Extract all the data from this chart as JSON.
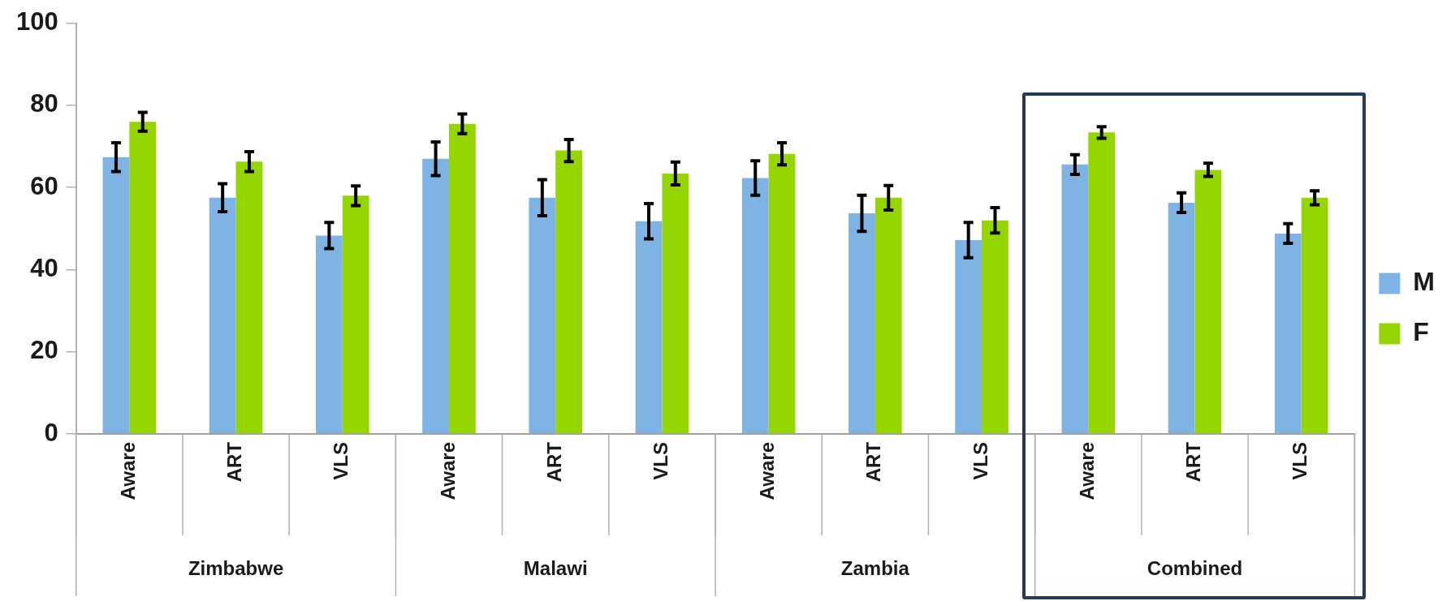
{
  "chart_data": {
    "type": "bar",
    "categories": [
      "Aware",
      "ART",
      "VLS",
      "Aware",
      "ART",
      "VLS",
      "Aware",
      "ART",
      "VLS",
      "Aware",
      "ART",
      "VLS"
    ],
    "series": [
      {
        "name": "M",
        "color": "#7fb3e3",
        "values": [
          67.4,
          57.5,
          48.3,
          67.0,
          57.5,
          51.8,
          62.3,
          53.7,
          47.2,
          65.6,
          56.3,
          48.8
        ],
        "errors": [
          3.5,
          3.4,
          3.2,
          4.1,
          4.4,
          4.3,
          4.2,
          4.4,
          4.3,
          2.4,
          2.4,
          2.4
        ]
      },
      {
        "name": "F",
        "color": "#96d600",
        "values": [
          76.0,
          66.3,
          58.0,
          75.5,
          69.0,
          63.4,
          68.2,
          57.5,
          52.0,
          73.4,
          64.3,
          57.5
        ],
        "errors": [
          2.3,
          2.4,
          2.4,
          2.4,
          2.7,
          2.8,
          2.7,
          3.0,
          3.1,
          1.4,
          1.6,
          1.7
        ]
      }
    ],
    "annotations": [
      "Zimbabwe",
      "Malawi",
      "Zambia",
      "Combined"
    ],
    "ylim": [
      0,
      100
    ],
    "yticks": [
      0,
      20,
      40,
      60,
      80,
      100
    ],
    "grid": false,
    "legend": "right"
  }
}
